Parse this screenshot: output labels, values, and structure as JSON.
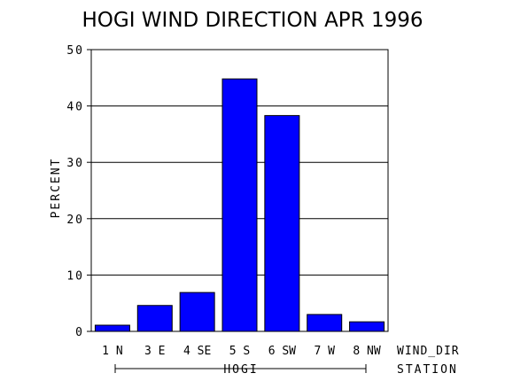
{
  "chart_data": {
    "type": "bar",
    "title": "HOGI WIND DIRECTION APR 1996",
    "ylabel": "PERCENT",
    "xlabel": "WIND_DIR",
    "group_axis_label": "STATION",
    "group_label": "HOGI",
    "categories": [
      "1 N",
      "3 E",
      "4 SE",
      "5 S",
      "6 SW",
      "7 W",
      "8 NW"
    ],
    "values": [
      1.1,
      4.6,
      6.9,
      44.8,
      38.3,
      3.0,
      1.7
    ],
    "ylim": [
      0,
      50
    ],
    "yticks": [
      "0",
      "10",
      "20",
      "30",
      "40",
      "50"
    ],
    "grid": true,
    "bar_color": "#0000ff"
  }
}
